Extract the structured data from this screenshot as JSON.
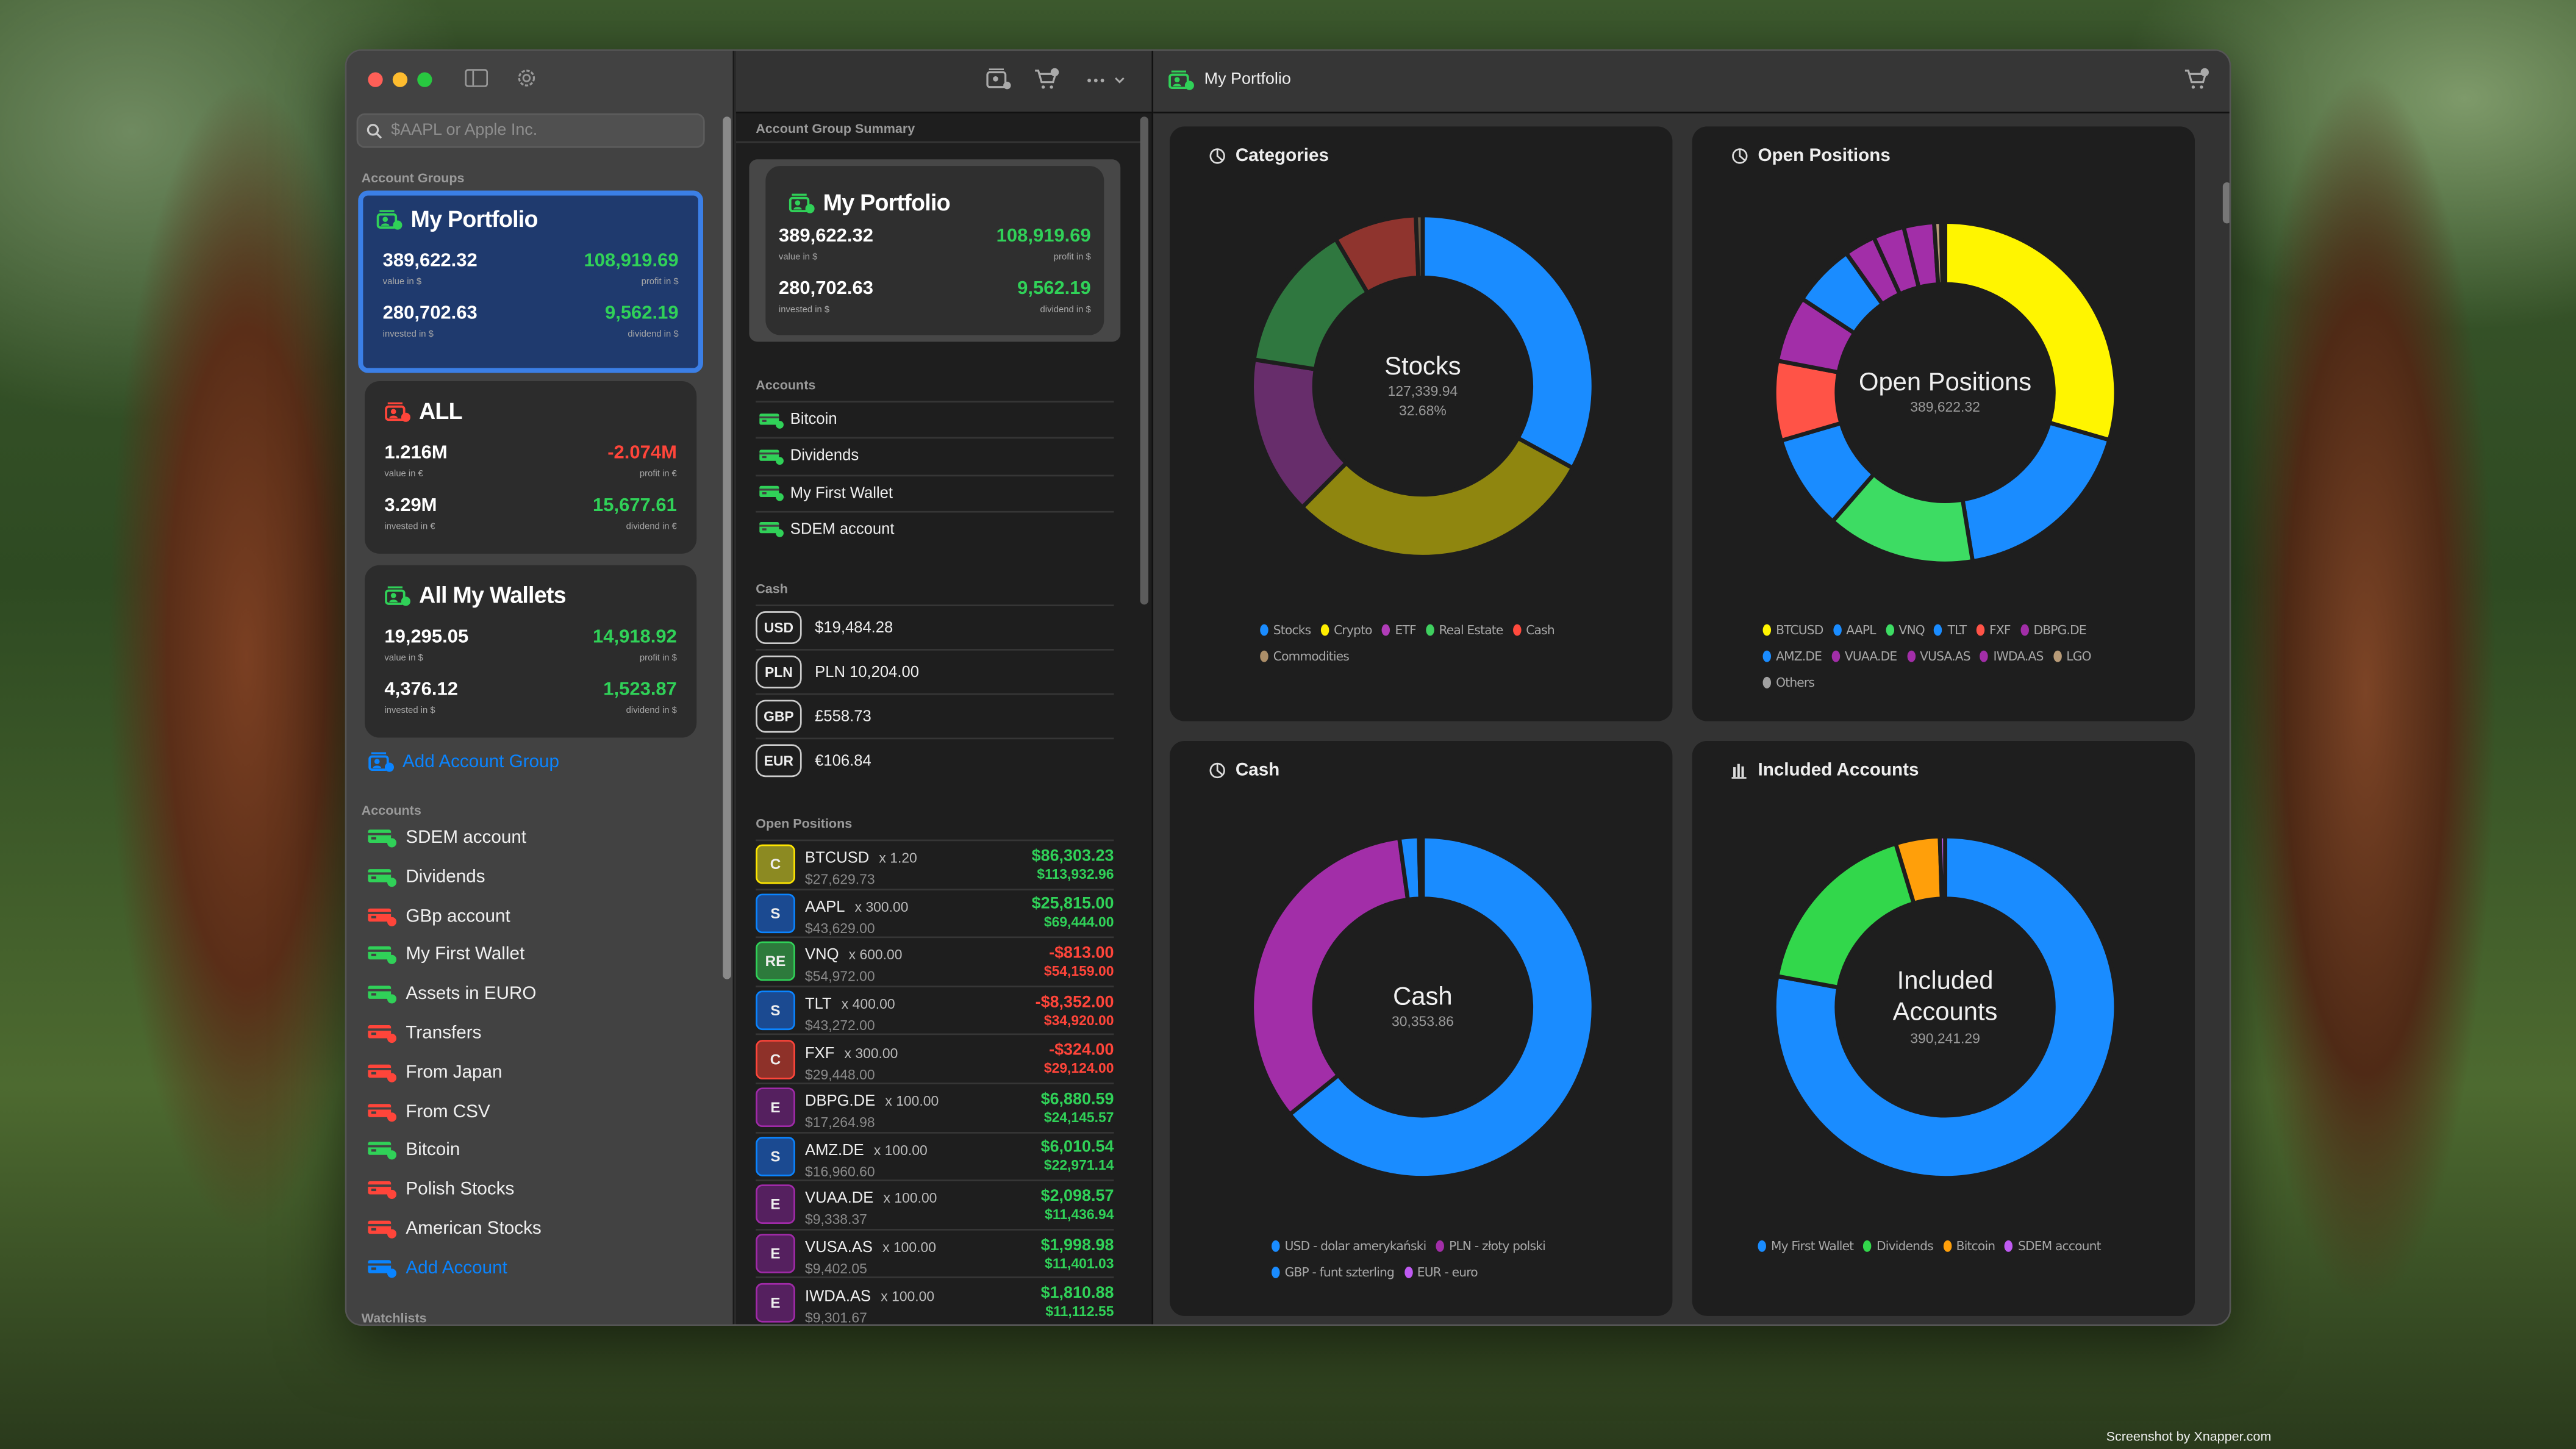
{
  "window": {
    "traffic_lights": {
      "close": "#ff5f57",
      "minimize": "#febc2e",
      "zoom": "#28c840"
    }
  },
  "sidebar": {
    "search_placeholder": "$AAPL or Apple Inc.",
    "groups_label": "Account Groups",
    "groups": [
      {
        "name": "My Portfolio",
        "status": "up",
        "selected": true,
        "value": "389,622.32",
        "value_label": "value in $",
        "profit": "108,919.69",
        "profit_label": "profit in $",
        "profit_sign": "positive",
        "invested": "280,702.63",
        "invested_label": "invested in $",
        "dividend": "9,562.19",
        "dividend_label": "dividend in $"
      },
      {
        "name": "ALL",
        "status": "down",
        "selected": false,
        "value": "1.216M",
        "value_label": "value in €",
        "profit": "-2.074M",
        "profit_label": "profit in €",
        "profit_sign": "negative",
        "invested": "3.29M",
        "invested_label": "invested in €",
        "dividend": "15,677.61",
        "dividend_label": "dividend in €"
      },
      {
        "name": "All My Wallets",
        "status": "up",
        "selected": false,
        "value": "19,295.05",
        "value_label": "value in $",
        "profit": "14,918.92",
        "profit_label": "profit in $",
        "profit_sign": "positive",
        "invested": "4,376.12",
        "invested_label": "invested in $",
        "dividend": "1,523.87",
        "dividend_label": "dividend in $"
      }
    ],
    "add_group_label": "Add Account Group",
    "accounts_label": "Accounts",
    "accounts": [
      {
        "name": "SDEM account",
        "status": "up"
      },
      {
        "name": "Dividends",
        "status": "up"
      },
      {
        "name": "GBp account",
        "status": "down"
      },
      {
        "name": "My First Wallet",
        "status": "up"
      },
      {
        "name": "Assets in EURO",
        "status": "up"
      },
      {
        "name": "Transfers",
        "status": "down"
      },
      {
        "name": "From Japan",
        "status": "down"
      },
      {
        "name": "From CSV",
        "status": "down"
      },
      {
        "name": "Bitcoin",
        "status": "up"
      },
      {
        "name": "Polish Stocks",
        "status": "down"
      },
      {
        "name": "American Stocks",
        "status": "down"
      }
    ],
    "add_account_label": "Add Account",
    "watchlists_label": "Watchlists"
  },
  "summary": {
    "section_label": "Account Group Summary",
    "card": {
      "name": "My Portfolio",
      "value": "389,622.32",
      "value_label": "value in $",
      "profit": "108,919.69",
      "profit_label": "profit in $",
      "invested": "280,702.63",
      "invested_label": "invested in $",
      "dividend": "9,562.19",
      "dividend_label": "dividend in $"
    },
    "accounts_label": "Accounts",
    "accounts": [
      "Bitcoin",
      "Dividends",
      "My First Wallet",
      "SDEM account"
    ],
    "cash_label": "Cash",
    "cash": [
      {
        "code": "USD",
        "amount": "$19,484.28"
      },
      {
        "code": "PLN",
        "amount": "PLN 10,204.00"
      },
      {
        "code": "GBP",
        "amount": "£558.73"
      },
      {
        "code": "EUR",
        "amount": "€106.84"
      }
    ],
    "positions_label": "Open Positions",
    "positions": [
      {
        "badge": "C",
        "badge_color": "#ffe600",
        "badge_bg": "#8c8a22",
        "symbol": "BTCUSD",
        "qty": "x 1.20",
        "cost": "$27,629.73",
        "profit": "$86,303.23",
        "value": "$113,932.96",
        "sign": "positive"
      },
      {
        "badge": "S",
        "badge_color": "#0a84ff",
        "badge_bg": "#1b4a91",
        "symbol": "AAPL",
        "qty": "x 300.00",
        "cost": "$43,629.00",
        "profit": "$25,815.00",
        "value": "$69,444.00",
        "sign": "positive"
      },
      {
        "badge": "RE",
        "badge_color": "#30d158",
        "badge_bg": "#2d7a3c",
        "symbol": "VNQ",
        "qty": "x 600.00",
        "cost": "$54,972.00",
        "profit": "-$813.00",
        "value": "$54,159.00",
        "sign": "negative"
      },
      {
        "badge": "S",
        "badge_color": "#0a84ff",
        "badge_bg": "#1b4a91",
        "symbol": "TLT",
        "qty": "x 400.00",
        "cost": "$43,272.00",
        "profit": "-$8,352.00",
        "value": "$34,920.00",
        "sign": "negative"
      },
      {
        "badge": "C",
        "badge_color": "#ff453a",
        "badge_bg": "#8e3129",
        "symbol": "FXF",
        "qty": "x 300.00",
        "cost": "$29,448.00",
        "profit": "-$324.00",
        "value": "$29,124.00",
        "sign": "negative"
      },
      {
        "badge": "E",
        "badge_color": "#a02aa8",
        "badge_bg": "#55205f",
        "symbol": "DBPG.DE",
        "qty": "x 100.00",
        "cost": "$17,264.98",
        "profit": "$6,880.59",
        "value": "$24,145.57",
        "sign": "positive"
      },
      {
        "badge": "S",
        "badge_color": "#0a84ff",
        "badge_bg": "#1b4a91",
        "symbol": "AMZ.DE",
        "qty": "x 100.00",
        "cost": "$16,960.60",
        "profit": "$6,010.54",
        "value": "$22,971.14",
        "sign": "positive"
      },
      {
        "badge": "E",
        "badge_color": "#a02aa8",
        "badge_bg": "#55205f",
        "symbol": "VUAA.DE",
        "qty": "x 100.00",
        "cost": "$9,338.37",
        "profit": "$2,098.57",
        "value": "$11,436.94",
        "sign": "positive"
      },
      {
        "badge": "E",
        "badge_color": "#a02aa8",
        "badge_bg": "#55205f",
        "symbol": "VUSA.AS",
        "qty": "x 100.00",
        "cost": "$9,402.05",
        "profit": "$1,998.98",
        "value": "$11,401.03",
        "sign": "positive"
      },
      {
        "badge": "E",
        "badge_color": "#a02aa8",
        "badge_bg": "#55205f",
        "symbol": "IWDA.AS",
        "qty": "x 100.00",
        "cost": "$9,301.67",
        "profit": "$1,810.88",
        "value": "$11,112.55",
        "sign": "positive"
      }
    ]
  },
  "detail": {
    "title": "My Portfolio"
  },
  "colors": {
    "accent": "#0a84ff",
    "positive": "#30d158",
    "negative": "#ff453a"
  },
  "chart_data": [
    {
      "type": "pie",
      "variant": "donut",
      "title": "Categories",
      "title_icon": "pie-chart-icon",
      "center_title": "Stocks",
      "center_value": "127,339.94",
      "center_percent": "32.68%",
      "selected": "Stocks",
      "categories": [
        "Stocks",
        "Crypto",
        "ETF",
        "Real Estate",
        "Cash",
        "Commodities"
      ],
      "values": [
        127339.94,
        113932.96,
        58096.09,
        54159.0,
        30353.86,
        2500
      ],
      "colors": [
        "#1a8cff",
        "#ffee00",
        "#b03cb8",
        "#3fd05f",
        "#ff4a3d",
        "#ac8e68"
      ],
      "legend": "bottom"
    },
    {
      "type": "pie",
      "variant": "donut",
      "title": "Open Positions",
      "title_icon": "pie-chart-icon",
      "center_title": "Open Positions",
      "center_value": "389,622.32",
      "categories": [
        "BTCUSD",
        "AAPL",
        "VNQ",
        "TLT",
        "FXF",
        "DBPG.DE",
        "AMZ.DE",
        "VUAA.DE",
        "VUSA.AS",
        "IWDA.AS",
        "LGO",
        "Others"
      ],
      "values": [
        113932.96,
        69444.0,
        54159.0,
        34920.0,
        29124.0,
        24145.57,
        22971.14,
        11436.94,
        11401.03,
        11112.55,
        2500,
        1500
      ],
      "colors": [
        "#fff500",
        "#1a8cff",
        "#3ddc63",
        "#1a8cff",
        "#ff5347",
        "#a22ea8",
        "#1a8cff",
        "#a22ea8",
        "#a22ea8",
        "#a22ea8",
        "#b89b78",
        "#a0a0a0"
      ],
      "legend": "bottom"
    },
    {
      "type": "pie",
      "variant": "donut",
      "title": "Cash",
      "title_icon": "pie-chart-icon",
      "center_title": "Cash",
      "center_value": "30,353.86",
      "categories": [
        "USD - dolar amerykański",
        "PLN - złoty polski",
        "GBP - funt szterling",
        "EUR - euro"
      ],
      "values": [
        19484.28,
        10204.0,
        558.73,
        106.84
      ],
      "colors": [
        "#1a8cff",
        "#a22ea8",
        "#1a8cff",
        "#bf5af2"
      ],
      "legend": "bottom"
    },
    {
      "type": "pie",
      "variant": "donut",
      "title": "Included Accounts",
      "title_icon": "bar-chart-icon",
      "center_title": "Included Accounts",
      "center_value": "390,241.29",
      "categories": [
        "My First Wallet",
        "Dividends",
        "Bitcoin",
        "SDEM account"
      ],
      "values": [
        304000,
        68000,
        16300,
        1941.29
      ],
      "colors": [
        "#1a8cff",
        "#32d74b",
        "#ff9f0a",
        "#bf5af2"
      ],
      "legend": "bottom"
    }
  ]
}
